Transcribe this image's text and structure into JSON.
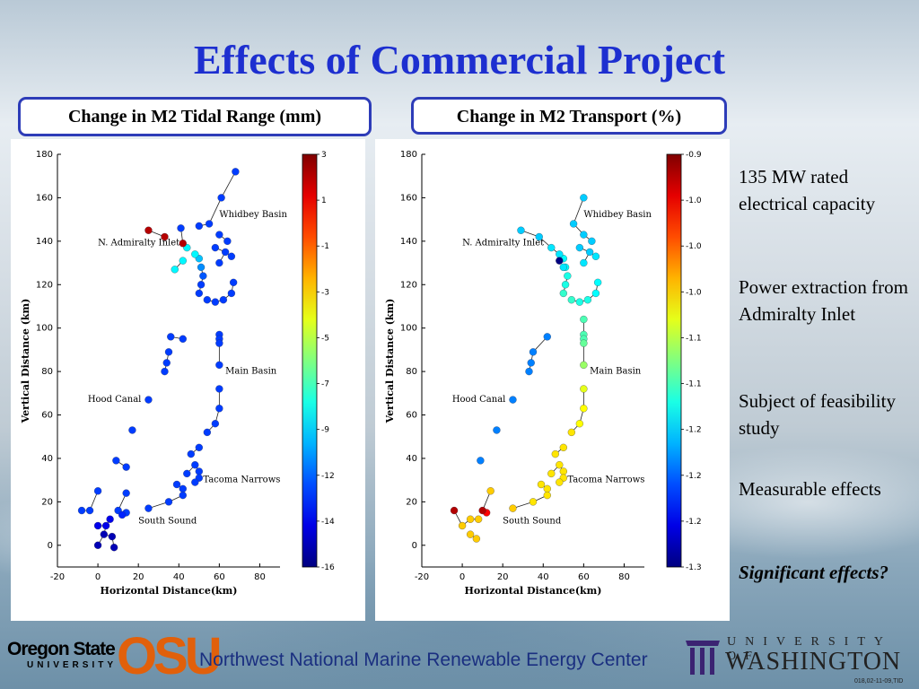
{
  "title": "Effects of Commercial Project",
  "panels": [
    {
      "label": "Change in M2 Tidal Range (mm)"
    },
    {
      "label": "Change in M2 Transport (%)"
    }
  ],
  "side_notes": [
    "135 MW rated electrical capacity",
    "Power extraction from Admiralty Inlet",
    "Subject of feasibility study",
    "Measurable effects",
    "Significant effects?"
  ],
  "footer": {
    "center_text": "Northwest National Marine Renewable Energy Center",
    "osu_name_line1": "Oregon State",
    "osu_name_line2": "UNIVERSITY",
    "osu_mark": "OSU",
    "uw_line1": "UNIVERSITY OF",
    "uw_line2": "WASHINGTON",
    "slide_id": "018,02-11-09,TID"
  },
  "colors": {
    "title": "#1d2fd0",
    "box_border": "#2d3cb8"
  },
  "chart_data": [
    {
      "type": "scatter",
      "title": "Change in M2 Tidal Range (mm)",
      "xlabel": "Horizontal Distance(km)",
      "ylabel": "Vertical Distance (km)",
      "xlim": [
        -20,
        90
      ],
      "ylim": [
        -10,
        180
      ],
      "xticks": [
        -20,
        0,
        20,
        40,
        60,
        80
      ],
      "yticks": [
        0,
        20,
        40,
        60,
        80,
        100,
        120,
        140,
        160,
        180
      ],
      "colorbar": {
        "ticks": [
          "3",
          "1",
          "-1",
          "-3",
          "-5",
          "-7",
          "-9",
          "-12",
          "-14",
          "-16"
        ],
        "min": -16,
        "max": 3
      },
      "region_labels": [
        {
          "text": "Whidbey Basin",
          "x": 60,
          "y": 151
        },
        {
          "text": "N. Admiralty Inlet",
          "x": 0,
          "y": 138
        },
        {
          "text": "Main Basin",
          "x": 63,
          "y": 79
        },
        {
          "text": "Hood Canal",
          "x": -5,
          "y": 66
        },
        {
          "text": "Tacoma Narrows",
          "x": 52,
          "y": 29
        },
        {
          "text": "South Sound",
          "x": 20,
          "y": 10
        }
      ],
      "points": [
        {
          "x": 68,
          "y": 172,
          "v": -12.5
        },
        {
          "x": 61,
          "y": 160,
          "v": -12.5
        },
        {
          "x": 55,
          "y": 148,
          "v": -12.5
        },
        {
          "x": 60,
          "y": 143,
          "v": -12.5
        },
        {
          "x": 64,
          "y": 140,
          "v": -12.5
        },
        {
          "x": 58,
          "y": 137,
          "v": -12.5
        },
        {
          "x": 63,
          "y": 135,
          "v": -12.5
        },
        {
          "x": 66,
          "y": 133,
          "v": -12.5
        },
        {
          "x": 60,
          "y": 130,
          "v": -12.5
        },
        {
          "x": 67,
          "y": 121,
          "v": -12.5
        },
        {
          "x": 66,
          "y": 116,
          "v": -12.5
        },
        {
          "x": 62,
          "y": 113,
          "v": -12.5
        },
        {
          "x": 58,
          "y": 112,
          "v": -12.5
        },
        {
          "x": 54,
          "y": 113,
          "v": -12.5
        },
        {
          "x": 50,
          "y": 116,
          "v": -12.5
        },
        {
          "x": 51,
          "y": 120,
          "v": -12.5
        },
        {
          "x": 52,
          "y": 124,
          "v": -12
        },
        {
          "x": 51,
          "y": 128,
          "v": -11
        },
        {
          "x": 50,
          "y": 132,
          "v": -10
        },
        {
          "x": 48,
          "y": 134,
          "v": -9
        },
        {
          "x": 44,
          "y": 137,
          "v": -9
        },
        {
          "x": 42,
          "y": 131,
          "v": -9
        },
        {
          "x": 38,
          "y": 127,
          "v": -9
        },
        {
          "x": 41,
          "y": 146,
          "v": -12.5
        },
        {
          "x": 50,
          "y": 147,
          "v": -12.5
        },
        {
          "x": 42,
          "y": 139,
          "v": 2
        },
        {
          "x": 33,
          "y": 142,
          "v": 2
        },
        {
          "x": 25,
          "y": 145,
          "v": 2
        },
        {
          "x": 60,
          "y": 97,
          "v": -12.5
        },
        {
          "x": 60,
          "y": 95,
          "v": -12.5
        },
        {
          "x": 60,
          "y": 93,
          "v": -12.5
        },
        {
          "x": 60,
          "y": 83,
          "v": -12.5
        },
        {
          "x": 60,
          "y": 72,
          "v": -12.5
        },
        {
          "x": 60,
          "y": 63,
          "v": -12.5
        },
        {
          "x": 58,
          "y": 56,
          "v": -12.5
        },
        {
          "x": 54,
          "y": 52,
          "v": -12.5
        },
        {
          "x": 50,
          "y": 45,
          "v": -12.5
        },
        {
          "x": 46,
          "y": 42,
          "v": -12.5
        },
        {
          "x": 48,
          "y": 37,
          "v": -12.5
        },
        {
          "x": 44,
          "y": 33,
          "v": -12.5
        },
        {
          "x": 50,
          "y": 34,
          "v": -12.5
        },
        {
          "x": 50,
          "y": 31,
          "v": -12.5
        },
        {
          "x": 48,
          "y": 29,
          "v": -12.5
        },
        {
          "x": 42,
          "y": 26,
          "v": -12.5
        },
        {
          "x": 39,
          "y": 28,
          "v": -12.5
        },
        {
          "x": 42,
          "y": 23,
          "v": -12.5
        },
        {
          "x": 35,
          "y": 20,
          "v": -12.5
        },
        {
          "x": 42,
          "y": 95,
          "v": -12.5
        },
        {
          "x": 36,
          "y": 96,
          "v": -12.5
        },
        {
          "x": 35,
          "y": 89,
          "v": -12.5
        },
        {
          "x": 34,
          "y": 84,
          "v": -12.5
        },
        {
          "x": 33,
          "y": 80,
          "v": -12.5
        },
        {
          "x": 25,
          "y": 67,
          "v": -12.5
        },
        {
          "x": 17,
          "y": 53,
          "v": -12.5
        },
        {
          "x": 9,
          "y": 39,
          "v": -12.5
        },
        {
          "x": 0,
          "y": 25,
          "v": -12.5
        },
        {
          "x": 14,
          "y": 36,
          "v": -12.5
        },
        {
          "x": 14,
          "y": 24,
          "v": -12.5
        },
        {
          "x": 14,
          "y": 15,
          "v": -12.5
        },
        {
          "x": 10,
          "y": 16,
          "v": -12.5
        },
        {
          "x": 12,
          "y": 14,
          "v": -13
        },
        {
          "x": 25,
          "y": 17,
          "v": -12.5
        },
        {
          "x": -8,
          "y": 16,
          "v": -12.5
        },
        {
          "x": -4,
          "y": 16,
          "v": -12.5
        },
        {
          "x": 6,
          "y": 12,
          "v": -14
        },
        {
          "x": 4,
          "y": 9,
          "v": -14
        },
        {
          "x": 0,
          "y": 9,
          "v": -14
        },
        {
          "x": 3,
          "y": 5,
          "v": -15
        },
        {
          "x": 7,
          "y": 4,
          "v": -15
        },
        {
          "x": 0,
          "y": 0,
          "v": -15
        },
        {
          "x": 8,
          "y": -1,
          "v": -15
        }
      ]
    },
    {
      "type": "scatter",
      "title": "Change in M2 Transport (%)",
      "xlabel": "Horizontal Distance(km)",
      "ylabel": "Vertical Distance (km)",
      "xlim": [
        -20,
        90
      ],
      "ylim": [
        -10,
        180
      ],
      "xticks": [
        -20,
        0,
        20,
        40,
        60,
        80
      ],
      "yticks": [
        0,
        20,
        40,
        60,
        80,
        100,
        120,
        140,
        160,
        180
      ],
      "colorbar": {
        "ticks": [
          "-0.9",
          "-1.0",
          "-1.0",
          "-1.0",
          "-1.1",
          "-1.1",
          "-1.2",
          "-1.2",
          "-1.2",
          "-1.3"
        ],
        "min": -1.3,
        "max": -0.9
      },
      "region_labels": [
        {
          "text": "Whidbey Basin",
          "x": 60,
          "y": 151
        },
        {
          "text": "N. Admiralty Inlet",
          "x": 0,
          "y": 138
        },
        {
          "text": "Main Basin",
          "x": 63,
          "y": 79
        },
        {
          "text": "Hood Canal",
          "x": -5,
          "y": 66
        },
        {
          "text": "Tacoma Narrows",
          "x": 52,
          "y": 29
        },
        {
          "text": "South Sound",
          "x": 20,
          "y": 10
        }
      ],
      "points": [
        {
          "x": 60,
          "y": 160,
          "v": -1.17
        },
        {
          "x": 55,
          "y": 148,
          "v": -1.17
        },
        {
          "x": 60,
          "y": 143,
          "v": -1.17
        },
        {
          "x": 64,
          "y": 140,
          "v": -1.17
        },
        {
          "x": 58,
          "y": 137,
          "v": -1.17
        },
        {
          "x": 63,
          "y": 135,
          "v": -1.17
        },
        {
          "x": 66,
          "y": 133,
          "v": -1.16
        },
        {
          "x": 60,
          "y": 130,
          "v": -1.16
        },
        {
          "x": 67,
          "y": 121,
          "v": -1.15
        },
        {
          "x": 66,
          "y": 116,
          "v": -1.15
        },
        {
          "x": 62,
          "y": 113,
          "v": -1.14
        },
        {
          "x": 58,
          "y": 112,
          "v": -1.14
        },
        {
          "x": 54,
          "y": 113,
          "v": -1.13
        },
        {
          "x": 50,
          "y": 116,
          "v": -1.13
        },
        {
          "x": 51,
          "y": 120,
          "v": -1.14
        },
        {
          "x": 52,
          "y": 124,
          "v": -1.14
        },
        {
          "x": 51,
          "y": 128,
          "v": -1.15
        },
        {
          "x": 50,
          "y": 132,
          "v": -1.15
        },
        {
          "x": 48,
          "y": 134,
          "v": -1.16
        },
        {
          "x": 44,
          "y": 137,
          "v": -1.16
        },
        {
          "x": 38,
          "y": 142,
          "v": -1.17
        },
        {
          "x": 29,
          "y": 145,
          "v": -1.17
        },
        {
          "x": 48,
          "y": 131,
          "v": -1.3
        },
        {
          "x": 50,
          "y": 128,
          "v": -1.16
        },
        {
          "x": 60,
          "y": 104,
          "v": -1.12
        },
        {
          "x": 60,
          "y": 97,
          "v": -1.12
        },
        {
          "x": 60,
          "y": 95,
          "v": -1.12
        },
        {
          "x": 60,
          "y": 93,
          "v": -1.11
        },
        {
          "x": 60,
          "y": 83,
          "v": -1.09
        },
        {
          "x": 60,
          "y": 72,
          "v": -1.06
        },
        {
          "x": 60,
          "y": 63,
          "v": -1.05
        },
        {
          "x": 58,
          "y": 56,
          "v": -1.05
        },
        {
          "x": 54,
          "y": 52,
          "v": -1.04
        },
        {
          "x": 50,
          "y": 45,
          "v": -1.04
        },
        {
          "x": 46,
          "y": 42,
          "v": -1.04
        },
        {
          "x": 48,
          "y": 37,
          "v": -1.04
        },
        {
          "x": 44,
          "y": 33,
          "v": -1.04
        },
        {
          "x": 50,
          "y": 34,
          "v": -1.04
        },
        {
          "x": 50,
          "y": 31,
          "v": -1.04
        },
        {
          "x": 48,
          "y": 29,
          "v": -1.04
        },
        {
          "x": 42,
          "y": 26,
          "v": -1.04
        },
        {
          "x": 39,
          "y": 28,
          "v": -1.04
        },
        {
          "x": 42,
          "y": 23,
          "v": -1.04
        },
        {
          "x": 35,
          "y": 20,
          "v": -1.04
        },
        {
          "x": 42,
          "y": 96,
          "v": -1.2
        },
        {
          "x": 35,
          "y": 89,
          "v": -1.2
        },
        {
          "x": 34,
          "y": 84,
          "v": -1.2
        },
        {
          "x": 33,
          "y": 80,
          "v": -1.2
        },
        {
          "x": 25,
          "y": 67,
          "v": -1.2
        },
        {
          "x": 17,
          "y": 53,
          "v": -1.2
        },
        {
          "x": 9,
          "y": 39,
          "v": -1.2
        },
        {
          "x": 14,
          "y": 25,
          "v": -1.03
        },
        {
          "x": 25,
          "y": 17,
          "v": -1.03
        },
        {
          "x": 12,
          "y": 15,
          "v": -0.95
        },
        {
          "x": 10,
          "y": 16,
          "v": -0.92
        },
        {
          "x": -4,
          "y": 16,
          "v": -0.92
        },
        {
          "x": 4,
          "y": 12,
          "v": -1.03
        },
        {
          "x": 8,
          "y": 12,
          "v": -1.03
        },
        {
          "x": 0,
          "y": 9,
          "v": -1.03
        },
        {
          "x": 4,
          "y": 5,
          "v": -1.03
        },
        {
          "x": 7,
          "y": 3,
          "v": -1.03
        }
      ]
    }
  ]
}
